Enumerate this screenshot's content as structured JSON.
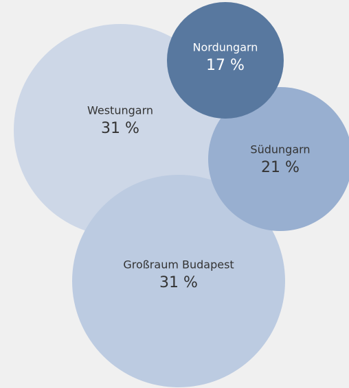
{
  "chart_data": {
    "type": "bubble",
    "categories": [
      "Westungarn",
      "Nordungarn",
      "Südungarn",
      "Großraum Budapest"
    ],
    "values": [
      31,
      17,
      21,
      31
    ],
    "value_labels": [
      "31 %",
      "17 %",
      "21 %",
      "31 %"
    ],
    "colors": [
      "#cdd7e7",
      "#58789f",
      "#98afd0",
      "#bccbe1"
    ]
  }
}
